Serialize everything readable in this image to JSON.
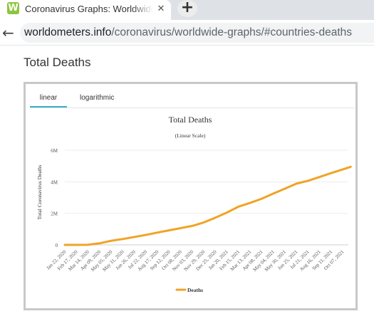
{
  "browser": {
    "tab_title": "Coronavirus Graphs: Worldwide C",
    "favicon_letter": "W",
    "new_tab_glyph": "+",
    "close_glyph": "✕",
    "back_glyph": "←",
    "url_host": "worldometers.info",
    "url_path": "/coronavirus/worldwide-graphs/#countries-deaths"
  },
  "page": {
    "heading": "Total Deaths",
    "tabs": [
      "linear",
      "logarithmic"
    ],
    "active_tab": "linear"
  },
  "colors": {
    "series": "#f0a325",
    "active_tab": "#34b2c9"
  },
  "chart_data": {
    "type": "line",
    "title": "Total Deaths",
    "subtitle": "(Linear Scale)",
    "ylabel": "Total Coronavirus Deaths",
    "xlabel": "",
    "ylim": [
      0,
      6000000
    ],
    "y_ticks": [
      0,
      2000000,
      4000000,
      6000000
    ],
    "y_tick_labels": [
      "0",
      "2M",
      "4M",
      "6M"
    ],
    "grid": true,
    "legend_position": "bottom",
    "x_tick_labels": [
      "Jan 22, 2020",
      "Feb 17, 2020",
      "Mar 14, 2020",
      "Apr 09, 2020",
      "May 05, 2020",
      "May 31, 2020",
      "Jun 26, 2020",
      "Jul 22, 2020",
      "Aug 17, 2020",
      "Sep 12, 2020",
      "Oct 08, 2020",
      "Nov 03, 2020",
      "Nov 29, 2020",
      "Dec 25, 2020",
      "Jan 20, 2021",
      "Feb 15, 2021",
      "Mar 13, 2021",
      "Apr 08, 2021",
      "May 04, 2021",
      "May 30, 2021",
      "Jun 25, 2021",
      "Jul 21, 2021",
      "Aug 16, 2021",
      "Sep 11, 2021",
      "Oct 07, 2021"
    ],
    "series": [
      {
        "name": "Deaths",
        "x": [
          "Jan 22, 2020",
          "Feb 17, 2020",
          "Mar 14, 2020",
          "Apr 09, 2020",
          "May 05, 2020",
          "May 31, 2020",
          "Jun 26, 2020",
          "Jul 22, 2020",
          "Aug 17, 2020",
          "Sep 12, 2020",
          "Oct 08, 2020",
          "Nov 03, 2020",
          "Nov 29, 2020",
          "Dec 25, 2020",
          "Jan 20, 2021",
          "Feb 15, 2021",
          "Mar 13, 2021",
          "Apr 08, 2021",
          "May 04, 2021",
          "May 30, 2021",
          "Jun 25, 2021",
          "Jul 21, 2021",
          "Aug 16, 2021",
          "Sep 11, 2021",
          "Oct 07, 2021",
          "Oct 25, 2021"
        ],
        "values": [
          0,
          2000,
          6000,
          100000,
          260000,
          370000,
          500000,
          630000,
          780000,
          920000,
          1060000,
          1200000,
          1420000,
          1720000,
          2050000,
          2420000,
          2660000,
          2920000,
          3250000,
          3560000,
          3880000,
          4060000,
          4300000,
          4550000,
          4780000,
          4950000
        ]
      }
    ]
  }
}
